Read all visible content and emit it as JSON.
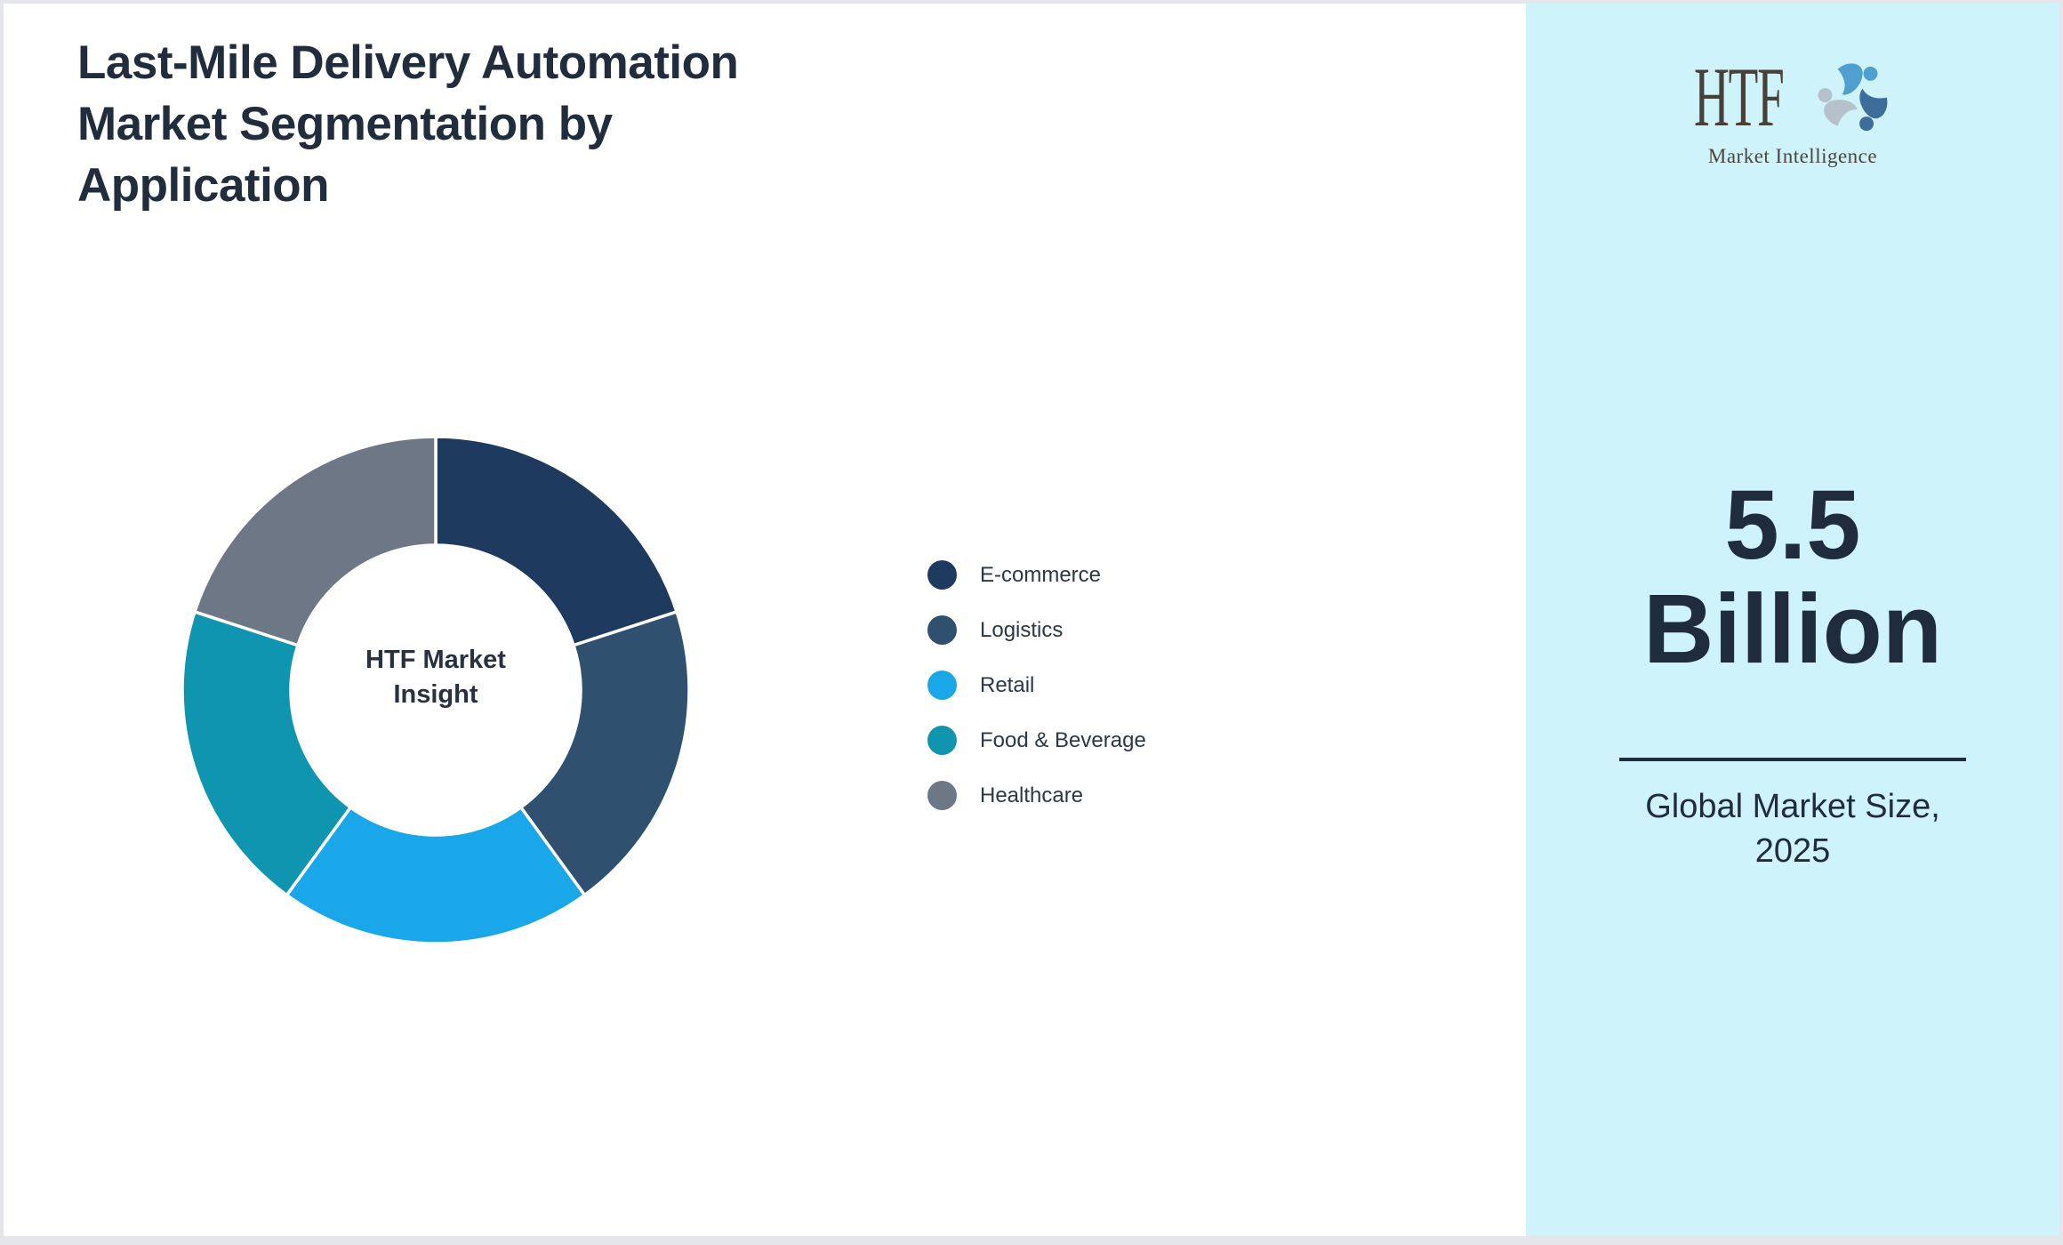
{
  "header": {
    "title": "Last-Mile Delivery Automation\nMarket Segmentation by\nApplication"
  },
  "chart_data": {
    "type": "pie",
    "donut": true,
    "title": "Last-Mile Delivery Automation Market Segmentation by Application",
    "center_label": "HTF Market Insight",
    "center_label_display": "HTF Market\nInsight",
    "legend_position": "right",
    "start_angle_deg": 0,
    "direction": "clockwise",
    "values_unit": "percent share (estimated from arc angles; no numeric labels shown)",
    "segments": [
      {
        "label": "E-commerce",
        "value": 20,
        "color": "#1e3a5f"
      },
      {
        "label": "Logistics",
        "value": 20,
        "color": "#2f506e"
      },
      {
        "label": "Retail",
        "value": 20,
        "color": "#1aa7ea"
      },
      {
        "label": "Food & Beverage",
        "value": 20,
        "color": "#1095b1"
      },
      {
        "label": "Healthcare",
        "value": 20,
        "color": "#6e7785"
      }
    ]
  },
  "sidebar": {
    "background": "#cff3fb",
    "logo": {
      "text": "HTF",
      "subtext": "Market Intelligence"
    },
    "stat_value": "5.5\nBillion",
    "stat_caption": "Global Market Size,\n2025"
  },
  "colors": {
    "text_dark": "#1f2c3e",
    "page_border": "#e4e6eb",
    "segment_gap": "#ffffff",
    "logo_text": "#474139",
    "logo_swirl_light_blue": "#4f9fd0",
    "logo_swirl_steel_blue": "#3c6d9b",
    "logo_swirl_gray": "#b7c1cb"
  }
}
